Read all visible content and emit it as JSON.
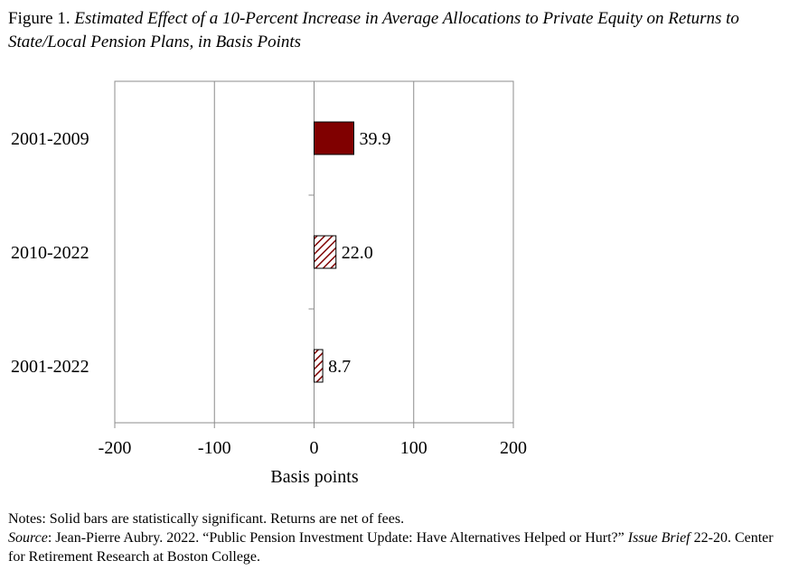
{
  "figure": {
    "label": "Figure 1.",
    "title": "Estimated Effect of a 10-Percent Increase in Average Allocations to Private Equity on Returns to State/Local Pension Plans, in Basis Points"
  },
  "chart_data": {
    "type": "bar",
    "orientation": "horizontal",
    "categories": [
      "2001-2009",
      "2010-2022",
      "2001-2022"
    ],
    "values": [
      39.9,
      22.0,
      8.7
    ],
    "value_labels": [
      "39.9",
      "22.0",
      "8.7"
    ],
    "significant": [
      true,
      false,
      false
    ],
    "xlim": [
      -200,
      200
    ],
    "x_ticks": [
      -200,
      -100,
      0,
      100,
      200
    ],
    "x_tick_labels": [
      "-200",
      "-100",
      "0",
      "100",
      "200"
    ],
    "xlabel": "Basis points",
    "ylabel": "",
    "grid": "vertical",
    "colors": {
      "solid": "#800000",
      "hatch": "#800000",
      "grid": "#8c8c8c",
      "frame": "#8c8c8c"
    }
  },
  "notes": {
    "line1": "Notes: Solid bars are statistically significant.  Returns are net of fees.",
    "source_label": "Source",
    "source_text_1": ": Jean-Pierre Aubry. 2022. “Public Pension Investment Update: Have Alternatives Helped or Hurt?” ",
    "source_italic": "Issue Brief",
    "source_text_2": " 22-20. Center for Retirement Research at Boston College."
  }
}
